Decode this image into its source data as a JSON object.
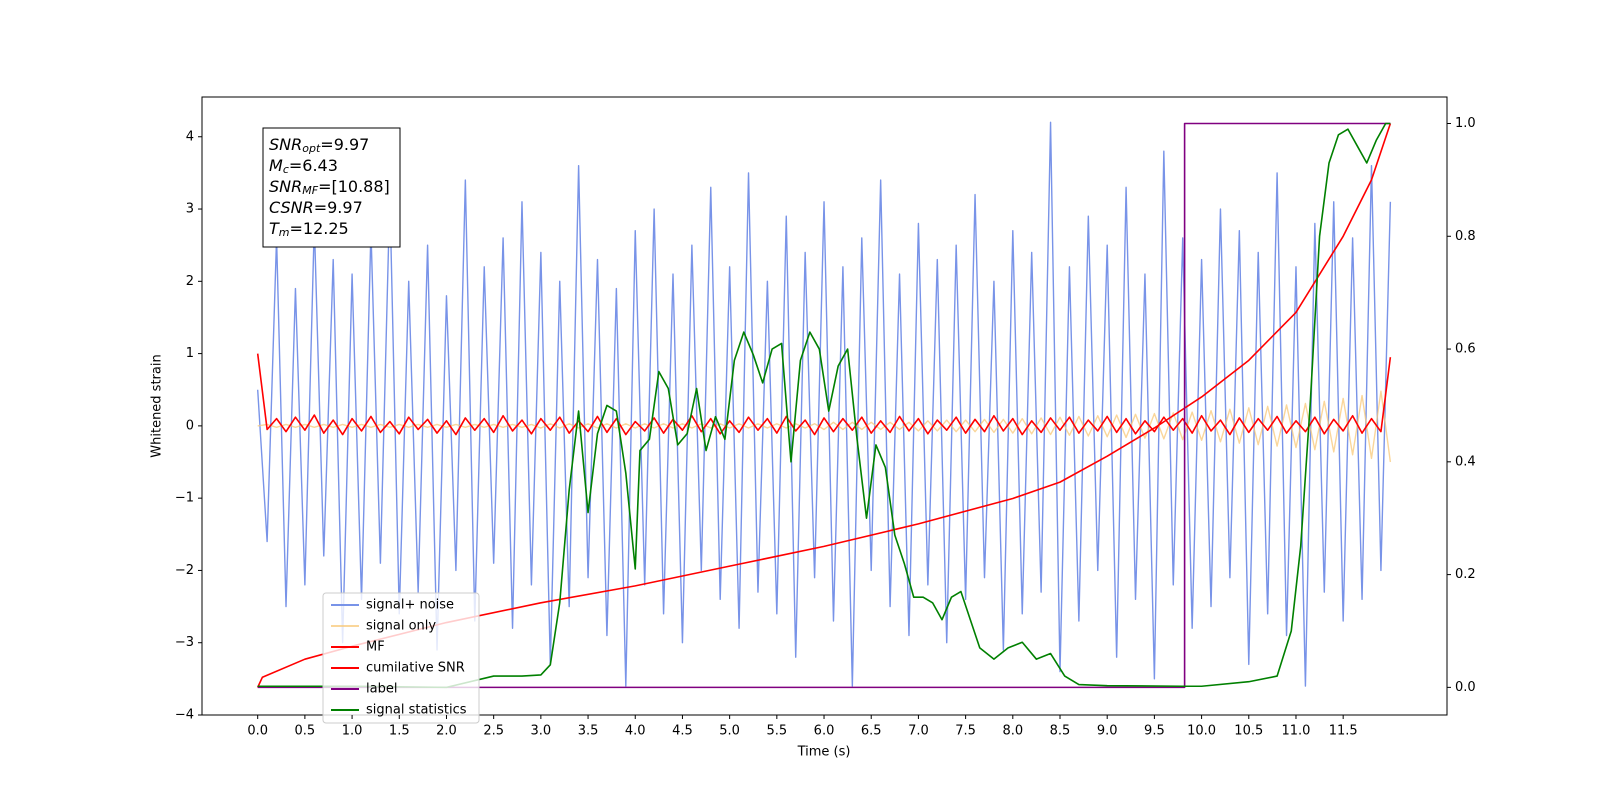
{
  "chart_data": {
    "type": "line",
    "xlabel": "Time (s)",
    "ylabel": "Whitened strain",
    "xlim": [
      -0.59,
      12.6
    ],
    "ylim": [
      -4.0,
      4.55
    ],
    "y2lim": [
      -0.049,
      1.047
    ],
    "xticks": [
      {
        "value": 0,
        "label": "0.0"
      },
      0.5,
      {
        "value": 1,
        "label": "1.0"
      },
      1.5,
      {
        "value": 2,
        "label": "2.0"
      },
      2.5,
      {
        "value": 3,
        "label": "3.0"
      },
      3.5,
      {
        "value": 4,
        "label": "4.0"
      },
      4.5,
      {
        "value": 5,
        "label": "5.0"
      },
      5.5,
      {
        "value": 6,
        "label": "6.0"
      },
      6.5,
      {
        "value": 7,
        "label": "7.0"
      },
      7.5,
      {
        "value": 8,
        "label": "8.0"
      },
      8.5,
      {
        "value": 9,
        "label": "9.0"
      },
      9.5,
      {
        "value": 10,
        "label": "10.0"
      },
      10.5,
      {
        "value": 11,
        "label": "11.0"
      },
      11.5
    ],
    "yticks": [
      {
        "value": -4,
        "label": "−4"
      },
      {
        "value": -3,
        "label": "−3"
      },
      {
        "value": -2,
        "label": "−2"
      },
      {
        "value": -1,
        "label": "−1"
      },
      0,
      1,
      2,
      3,
      4
    ],
    "y2ticks": [
      {
        "value": 0,
        "label": "0.0"
      },
      0.2,
      0.4,
      0.6,
      0.8,
      {
        "value": 1,
        "label": "1.0"
      }
    ],
    "grid": false,
    "annotations": [
      {
        "symbol": "SNR",
        "sub": "opt",
        "text": "=9.97"
      },
      {
        "symbol": "M",
        "sub": "c",
        "text": "=6.43"
      },
      {
        "symbol": "SNR",
        "sub": "MF",
        "text": "=[10.88]"
      },
      {
        "symbol": "CSNR",
        "text": "=9.97"
      },
      {
        "symbol": "T",
        "sub": "m",
        "text": "=12.25"
      }
    ],
    "x": [
      0,
      0.1,
      0.2,
      0.3,
      0.4,
      0.5,
      0.6,
      0.7,
      0.8,
      0.9,
      1,
      1.1,
      1.2,
      1.3,
      1.4,
      1.5,
      1.6,
      1.7,
      1.8,
      1.9,
      2,
      2.1,
      2.2,
      2.3,
      2.4,
      2.5,
      2.6,
      2.7,
      2.8,
      2.9,
      3,
      3.1,
      3.2,
      3.3,
      3.4,
      3.5,
      3.6,
      3.7,
      3.8,
      3.9,
      4,
      4.1,
      4.2,
      4.3,
      4.4,
      4.5,
      4.6,
      4.7,
      4.8,
      4.9,
      5,
      5.1,
      5.2,
      5.3,
      5.4,
      5.5,
      5.6,
      5.7,
      5.8,
      5.9,
      6,
      6.1,
      6.2,
      6.3,
      6.4,
      6.5,
      6.6,
      6.7,
      6.8,
      6.9,
      7,
      7.1,
      7.2,
      7.3,
      7.4,
      7.5,
      7.6,
      7.7,
      7.8,
      7.9,
      8,
      8.1,
      8.2,
      8.3,
      8.4,
      8.5,
      8.6,
      8.7,
      8.8,
      8.9,
      9,
      9.1,
      9.2,
      9.3,
      9.4,
      9.5,
      9.6,
      9.7,
      9.8,
      9.9,
      10,
      10.1,
      10.2,
      10.3,
      10.4,
      10.5,
      10.6,
      10.7,
      10.8,
      10.9,
      11,
      11.1,
      11.2,
      11.3,
      11.4,
      11.5,
      11.6,
      11.7,
      11.8,
      11.9,
      12
    ],
    "series": [
      {
        "name": "signal+ noise",
        "color": "#7893e8",
        "values": [
          0.5,
          -1.6,
          2.6,
          -2.5,
          1.9,
          -2.2,
          2.8,
          -1.8,
          2.3,
          -3.0,
          2.1,
          -2.4,
          2.7,
          -1.9,
          3.2,
          -2.6,
          2.0,
          -2.3,
          2.5,
          -3.1,
          1.8,
          -2.0,
          3.4,
          -2.7,
          2.2,
          -1.9,
          2.6,
          -2.8,
          3.1,
          -2.2,
          2.4,
          -3.3,
          2.0,
          -2.5,
          3.6,
          -2.1,
          2.3,
          -2.9,
          1.9,
          -3.6,
          2.7,
          -2.2,
          3.0,
          -2.6,
          2.1,
          -3.0,
          2.5,
          -2.0,
          3.3,
          -2.4,
          2.2,
          -2.8,
          3.5,
          -2.3,
          2.0,
          -2.6,
          2.9,
          -3.2,
          2.4,
          -2.1,
          3.1,
          -2.7,
          2.2,
          -3.6,
          2.6,
          -2.0,
          3.4,
          -2.5,
          2.1,
          -2.9,
          2.8,
          -2.2,
          2.3,
          -3.0,
          2.5,
          -2.4,
          3.2,
          -2.1,
          2.0,
          -3.1,
          2.7,
          -2.6,
          2.4,
          -2.3,
          4.2,
          -3.4,
          2.2,
          -2.7,
          2.9,
          -2.0,
          2.5,
          -3.2,
          3.3,
          -2.4,
          2.1,
          -3.5,
          3.8,
          -2.2,
          2.6,
          -2.8,
          2.3,
          -2.5,
          3.0,
          -2.1,
          2.7,
          -3.3,
          2.4,
          -2.6,
          3.5,
          -2.9,
          2.2,
          -3.6,
          2.8,
          -2.3,
          3.1,
          -2.7,
          2.6,
          -2.4,
          3.6,
          -2.0,
          3.1
        ]
      },
      {
        "name": "signal only",
        "color": "#f8c878",
        "values": [
          0,
          0.02,
          -0.02,
          0.02,
          -0.02,
          0.02,
          -0.02,
          0.02,
          -0.02,
          0.02,
          -0.02,
          0.02,
          -0.02,
          0.02,
          -0.02,
          0.02,
          -0.02,
          0.02,
          -0.02,
          0.02,
          -0.02,
          0.02,
          -0.02,
          0.02,
          -0.02,
          0.02,
          -0.02,
          0.02,
          -0.02,
          0.02,
          -0.03,
          0.03,
          -0.03,
          0.03,
          -0.03,
          0.03,
          -0.03,
          0.03,
          -0.03,
          0.03,
          -0.03,
          0.03,
          -0.03,
          0.03,
          -0.03,
          0.03,
          -0.03,
          0.03,
          -0.03,
          0.03,
          -0.03,
          0.03,
          -0.03,
          0.03,
          -0.03,
          0.03,
          -0.03,
          0.03,
          -0.03,
          0.03,
          -0.05,
          0.05,
          -0.05,
          0.05,
          -0.05,
          0.05,
          -0.05,
          0.05,
          -0.05,
          0.05,
          -0.07,
          0.07,
          -0.07,
          0.08,
          -0.08,
          0.08,
          -0.08,
          0.09,
          -0.09,
          0.09,
          -0.1,
          0.1,
          -0.11,
          0.11,
          -0.12,
          0.12,
          -0.13,
          0.13,
          -0.14,
          0.14,
          -0.15,
          0.15,
          -0.16,
          0.16,
          -0.17,
          0.17,
          -0.18,
          0.18,
          -0.19,
          0.19,
          -0.2,
          0.21,
          -0.22,
          0.23,
          -0.24,
          0.25,
          -0.26,
          0.27,
          -0.28,
          0.29,
          -0.3,
          0.31,
          -0.33,
          0.34,
          -0.36,
          0.38,
          -0.4,
          0.42,
          -0.45,
          0.48,
          -0.5
        ]
      },
      {
        "name": "MF",
        "color": "#ff0000",
        "values": [
          1.0,
          -0.05,
          0.1,
          -0.08,
          0.12,
          -0.06,
          0.15,
          -0.1,
          0.08,
          -0.12,
          0.1,
          -0.07,
          0.13,
          -0.09,
          0.06,
          -0.11,
          0.12,
          -0.05,
          0.09,
          -0.1,
          0.07,
          -0.12,
          0.11,
          -0.06,
          0.1,
          -0.09,
          0.14,
          -0.07,
          0.08,
          -0.11,
          0.1,
          -0.06,
          0.12,
          -0.1,
          0.07,
          -0.08,
          0.13,
          -0.09,
          0.1,
          -0.12,
          0.06,
          -0.07,
          0.11,
          -0.1,
          0.09,
          -0.06,
          0.14,
          -0.08,
          0.1,
          -0.11,
          0.07,
          -0.09,
          0.12,
          -0.06,
          0.1,
          -0.1,
          0.13,
          -0.07,
          0.08,
          -0.12,
          0.11,
          -0.08,
          0.1,
          -0.06,
          0.12,
          -0.1,
          0.07,
          -0.09,
          0.13,
          -0.07,
          0.1,
          -0.11,
          0.08,
          -0.06,
          0.12,
          -0.1,
          0.09,
          -0.08,
          0.14,
          -0.07,
          0.1,
          -0.12,
          0.07,
          -0.09,
          0.11,
          -0.06,
          0.12,
          -0.1,
          0.08,
          -0.07,
          0.13,
          -0.09,
          0.1,
          -0.11,
          0.07,
          -0.08,
          0.12,
          -0.06,
          0.1,
          -0.1,
          0.14,
          -0.07,
          0.08,
          -0.12,
          0.11,
          -0.09,
          0.1,
          -0.06,
          0.13,
          -0.1,
          0.07,
          -0.08,
          0.12,
          -0.11,
          0.09,
          -0.07,
          0.14,
          -0.1,
          0.1,
          -0.08,
          0.95
        ]
      },
      {
        "name": "cumilative SNR",
        "color": "#ff0000",
        "axis": "y2",
        "x": [
          0,
          0.05,
          0.5,
          1,
          2,
          3,
          4,
          5,
          6,
          7,
          8,
          8.5,
          9,
          9.5,
          10,
          10.5,
          11,
          11.5,
          11.8,
          12
        ],
        "values": [
          0,
          0.018,
          0.05,
          0.073,
          0.115,
          0.15,
          0.18,
          0.215,
          0.25,
          0.29,
          0.335,
          0.364,
          0.41,
          0.46,
          0.515,
          0.58,
          0.665,
          0.8,
          0.9,
          1.0
        ]
      },
      {
        "name": "label",
        "color": "#800080",
        "axis": "y2",
        "x": [
          0,
          9.82,
          9.82,
          12
        ],
        "values": [
          0,
          0,
          1,
          1
        ]
      },
      {
        "name": "signal statistics",
        "color": "#008000",
        "axis": "y2",
        "x": [
          0,
          1,
          2,
          2.5,
          2.8,
          3,
          3.1,
          3.2,
          3.3,
          3.4,
          3.5,
          3.6,
          3.7,
          3.8,
          3.9,
          4,
          4.05,
          4.15,
          4.25,
          4.35,
          4.45,
          4.55,
          4.65,
          4.75,
          4.85,
          4.95,
          5.05,
          5.15,
          5.25,
          5.35,
          5.45,
          5.55,
          5.65,
          5.75,
          5.85,
          5.95,
          6.05,
          6.15,
          6.25,
          6.35,
          6.45,
          6.55,
          6.65,
          6.75,
          6.85,
          6.95,
          7.05,
          7.15,
          7.25,
          7.35,
          7.45,
          7.55,
          7.65,
          7.8,
          7.95,
          8.1,
          8.25,
          8.4,
          8.55,
          8.7,
          9,
          9.8,
          10,
          10.5,
          10.8,
          10.95,
          11.05,
          11.15,
          11.25,
          11.35,
          11.45,
          11.55,
          11.65,
          11.75,
          11.85,
          11.95,
          12
        ],
        "values": [
          0.002,
          0.002,
          0,
          0.02,
          0.02,
          0.022,
          0.04,
          0.15,
          0.35,
          0.49,
          0.31,
          0.45,
          0.5,
          0.49,
          0.38,
          0.21,
          0.42,
          0.44,
          0.56,
          0.53,
          0.43,
          0.45,
          0.53,
          0.42,
          0.48,
          0.44,
          0.58,
          0.63,
          0.59,
          0.54,
          0.6,
          0.61,
          0.4,
          0.58,
          0.63,
          0.6,
          0.49,
          0.57,
          0.6,
          0.44,
          0.3,
          0.43,
          0.39,
          0.27,
          0.22,
          0.16,
          0.16,
          0.15,
          0.12,
          0.16,
          0.17,
          0.12,
          0.07,
          0.05,
          0.07,
          0.08,
          0.05,
          0.06,
          0.02,
          0.005,
          0.003,
          0.002,
          0.002,
          0.01,
          0.02,
          0.1,
          0.25,
          0.5,
          0.8,
          0.93,
          0.98,
          0.99,
          0.96,
          0.93,
          0.97,
          1.0,
          1.0
        ]
      }
    ]
  }
}
